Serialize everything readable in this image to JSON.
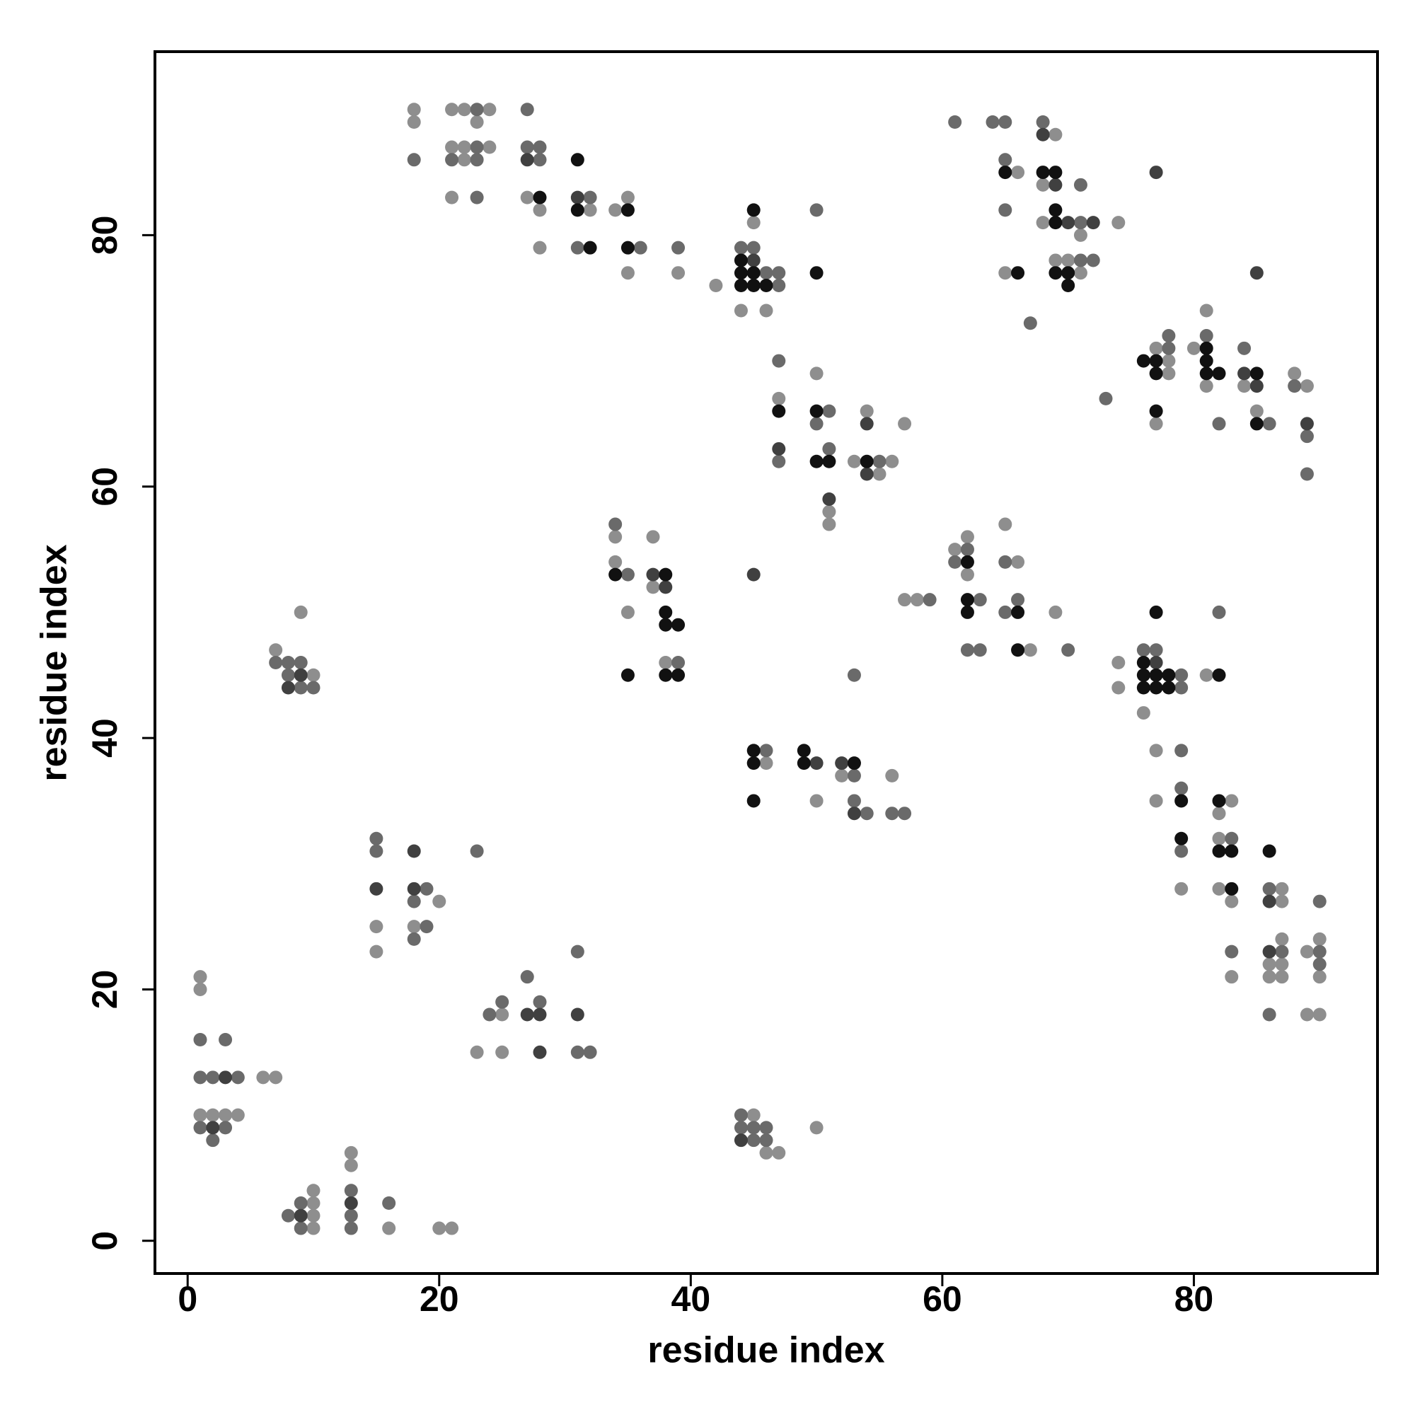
{
  "chart_data": {
    "type": "scatter",
    "x_label": "residue index",
    "y_label": "residue index",
    "xlim": [
      -2.6,
      94.6
    ],
    "ylim": [
      -2.6,
      94.6
    ],
    "xticks": [
      0,
      20,
      40,
      60,
      80
    ],
    "yticks": [
      0,
      20,
      40,
      60,
      80
    ],
    "grid": false,
    "series": [
      {
        "color": "#8e8e8e",
        "x": [
          1,
          1,
          6,
          7,
          1,
          2,
          3,
          4,
          10,
          10,
          10,
          10,
          13,
          13,
          16,
          20,
          21,
          15,
          15,
          18,
          20,
          25,
          23,
          25,
          7,
          10,
          9,
          18,
          18,
          21,
          22,
          24,
          23,
          21,
          22,
          24,
          22,
          21,
          27,
          28,
          28,
          32,
          34,
          35,
          35,
          39,
          42,
          45,
          44,
          46,
          47,
          50,
          51,
          51,
          54,
          53,
          56,
          55,
          57,
          34,
          34,
          37,
          35,
          37,
          38,
          46,
          50,
          52,
          56,
          45,
          46,
          47,
          50,
          57,
          58,
          61,
          62,
          62,
          65,
          66,
          67,
          69,
          66,
          65,
          69,
          68,
          68,
          71,
          69,
          70,
          71,
          74,
          77,
          78,
          78,
          77,
          80,
          81,
          81,
          84,
          85,
          88,
          89,
          74,
          74,
          76,
          81,
          77,
          77,
          79,
          82,
          83,
          82,
          82,
          83,
          83,
          87,
          87,
          87,
          86,
          87,
          86,
          87,
          89,
          90,
          90,
          89,
          90
        ],
        "values": [
          21,
          20,
          13,
          13,
          10,
          10,
          10,
          10,
          4,
          3,
          2,
          1,
          7,
          6,
          1,
          1,
          1,
          25,
          23,
          25,
          27,
          18,
          15,
          15,
          47,
          45,
          50,
          90,
          89,
          90,
          90,
          90,
          89,
          87,
          87,
          87,
          86,
          83,
          83,
          82,
          79,
          82,
          82,
          83,
          77,
          77,
          76,
          81,
          74,
          74,
          67,
          69,
          58,
          57,
          66,
          62,
          62,
          61,
          65,
          56,
          54,
          56,
          50,
          52,
          46,
          38,
          35,
          37,
          37,
          10,
          7,
          7,
          9,
          51,
          51,
          55,
          56,
          53,
          57,
          54,
          47,
          50,
          85,
          77,
          88,
          84,
          81,
          80,
          78,
          78,
          77,
          81,
          71,
          70,
          69,
          65,
          71,
          74,
          68,
          68,
          66,
          69,
          68,
          46,
          44,
          42,
          45,
          39,
          35,
          28,
          34,
          35,
          32,
          28,
          27,
          21,
          28,
          27,
          24,
          22,
          22,
          21,
          21,
          23,
          24,
          21,
          18,
          18
        ]
      },
      {
        "color": "#6a6a6a",
        "x": [
          1,
          3,
          1,
          2,
          4,
          1,
          3,
          2,
          8,
          9,
          9,
          13,
          13,
          13,
          16,
          15,
          15,
          18,
          19,
          19,
          18,
          23,
          24,
          25,
          27,
          28,
          31,
          31,
          32,
          7,
          8,
          9,
          8,
          9,
          10,
          18,
          23,
          23,
          21,
          23,
          23,
          27,
          27,
          28,
          28,
          32,
          31,
          36,
          39,
          44,
          45,
          46,
          47,
          47,
          50,
          47,
          47,
          51,
          50,
          51,
          55,
          34,
          35,
          39,
          46,
          53,
          53,
          54,
          53,
          56,
          57,
          44,
          44,
          45,
          46,
          45,
          46,
          59,
          62,
          61,
          63,
          62,
          63,
          65,
          66,
          65,
          70,
          61,
          64,
          65,
          65,
          65,
          67,
          68,
          71,
          71,
          71,
          72,
          73,
          78,
          78,
          81,
          82,
          84,
          86,
          88,
          89,
          89,
          76,
          77,
          79,
          79,
          82,
          79,
          79,
          79,
          83,
          83,
          86,
          87,
          86,
          90,
          90,
          90
        ],
        "values": [
          16,
          16,
          13,
          13,
          13,
          9,
          9,
          8,
          2,
          3,
          1,
          4,
          2,
          1,
          3,
          32,
          31,
          27,
          28,
          25,
          24,
          31,
          18,
          19,
          21,
          19,
          23,
          15,
          15,
          46,
          46,
          46,
          45,
          44,
          44,
          86,
          90,
          87,
          86,
          86,
          83,
          90,
          87,
          87,
          86,
          83,
          79,
          79,
          79,
          79,
          79,
          77,
          77,
          76,
          82,
          70,
          62,
          66,
          65,
          63,
          62,
          57,
          53,
          46,
          39,
          37,
          35,
          34,
          45,
          34,
          34,
          10,
          9,
          9,
          9,
          8,
          8,
          51,
          55,
          54,
          51,
          47,
          47,
          54,
          51,
          50,
          47,
          89,
          89,
          89,
          86,
          82,
          73,
          89,
          81,
          84,
          78,
          78,
          67,
          72,
          71,
          72,
          65,
          71,
          65,
          68,
          64,
          61,
          47,
          47,
          45,
          44,
          50,
          39,
          36,
          31,
          32,
          23,
          28,
          23,
          18,
          23,
          22,
          27
        ]
      },
      {
        "color": "#404040",
        "x": [
          3,
          2,
          9,
          13,
          15,
          18,
          18,
          27,
          28,
          28,
          31,
          9,
          8,
          27,
          31,
          45,
          47,
          51,
          54,
          54,
          37,
          38,
          45,
          50,
          52,
          53,
          44,
          68,
          69,
          70,
          72,
          77,
          84,
          85,
          85,
          89,
          77,
          86,
          86
        ],
        "values": [
          13,
          9,
          2,
          3,
          28,
          31,
          28,
          18,
          18,
          15,
          18,
          45,
          44,
          86,
          83,
          78,
          63,
          59,
          65,
          61,
          53,
          52,
          53,
          38,
          38,
          34,
          8,
          88,
          84,
          81,
          81,
          85,
          69,
          68,
          77,
          65,
          46,
          27,
          23
        ]
      },
      {
        "color": "#111111",
        "x": [
          28,
          31,
          31,
          32,
          35,
          35,
          44,
          44,
          45,
          44,
          45,
          46,
          45,
          50,
          47,
          50,
          50,
          51,
          54,
          34,
          35,
          38,
          38,
          38,
          39,
          38,
          39,
          45,
          45,
          45,
          49,
          49,
          53,
          62,
          62,
          62,
          66,
          66,
          65,
          66,
          68,
          69,
          69,
          69,
          69,
          70,
          70,
          76,
          77,
          77,
          77,
          81,
          81,
          81,
          82,
          85,
          85,
          76,
          76,
          77,
          78,
          76,
          77,
          78,
          77,
          82,
          79,
          79,
          82,
          82,
          83,
          83,
          86
        ],
        "values": [
          83,
          86,
          82,
          79,
          82,
          79,
          78,
          77,
          77,
          76,
          76,
          76,
          82,
          77,
          66,
          66,
          62,
          62,
          62,
          53,
          45,
          53,
          50,
          49,
          49,
          45,
          45,
          39,
          38,
          35,
          39,
          38,
          38,
          54,
          51,
          50,
          50,
          47,
          85,
          77,
          85,
          85,
          82,
          81,
          77,
          77,
          76,
          70,
          70,
          69,
          66,
          71,
          70,
          69,
          69,
          69,
          65,
          46,
          45,
          45,
          45,
          44,
          44,
          44,
          50,
          45,
          35,
          32,
          35,
          31,
          31,
          28,
          31
        ]
      }
    ]
  }
}
